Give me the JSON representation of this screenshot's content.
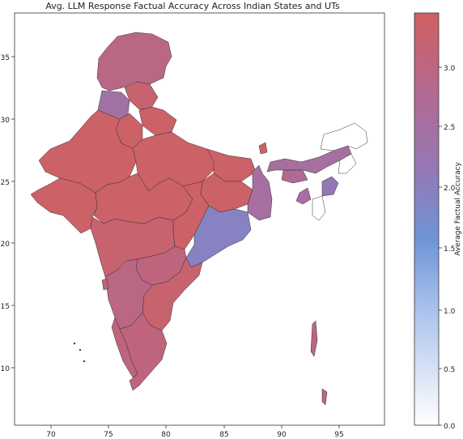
{
  "title": "Avg. LLM Response Factual Accuracy Across Indian States and UTs",
  "colorbar": {
    "label": "Average Factual Accuracy",
    "ticks": [
      "0.0",
      "0.5",
      "1.0",
      "1.5",
      "2.0",
      "2.5",
      "3.0"
    ],
    "min": 0.0,
    "max": 3.4,
    "colors": {
      "low": "#ffffff",
      "mid_low": "#6f95d6",
      "mid": "#9478b5",
      "high": "#d05f60"
    }
  },
  "axes": {
    "x_ticks": [
      "70",
      "75",
      "80",
      "85",
      "90",
      "95"
    ],
    "y_ticks": [
      "35",
      "30",
      "25",
      "20",
      "15",
      "10"
    ],
    "x_range": [
      67.5,
      98.5
    ],
    "y_range": [
      6.0,
      38.5
    ]
  },
  "chart_data": {
    "type": "choropleth",
    "title": "Avg. LLM Response Factual Accuracy Across Indian States and UTs",
    "colorbar_label": "Average Factual Accuracy",
    "value_range": [
      0.0,
      3.4
    ],
    "regions": [
      {
        "name": "Jammu and Kashmir",
        "value": 2.9
      },
      {
        "name": "Himachal Pradesh",
        "value": 3.2
      },
      {
        "name": "Punjab",
        "value": 2.4
      },
      {
        "name": "Uttarakhand",
        "value": 3.3
      },
      {
        "name": "Haryana",
        "value": 3.3
      },
      {
        "name": "Rajasthan",
        "value": 3.3
      },
      {
        "name": "Uttar Pradesh",
        "value": 3.3
      },
      {
        "name": "Bihar",
        "value": 3.3
      },
      {
        "name": "Gujarat",
        "value": 3.3
      },
      {
        "name": "Madhya Pradesh",
        "value": 3.3
      },
      {
        "name": "Jharkhand",
        "value": 3.3
      },
      {
        "name": "West Bengal",
        "value": 2.5
      },
      {
        "name": "Chhattisgarh",
        "value": 3.3
      },
      {
        "name": "Odisha",
        "value": 1.9
      },
      {
        "name": "Maharashtra",
        "value": 3.2
      },
      {
        "name": "Telangana",
        "value": 3.0
      },
      {
        "name": "Andhra Pradesh",
        "value": 3.2
      },
      {
        "name": "Karnataka",
        "value": 2.9
      },
      {
        "name": "Goa",
        "value": 3.0
      },
      {
        "name": "Kerala",
        "value": 3.0
      },
      {
        "name": "Tamil Nadu",
        "value": 3.0
      },
      {
        "name": "Sikkim",
        "value": 3.3
      },
      {
        "name": "Assam",
        "value": 2.5
      },
      {
        "name": "Meghalaya",
        "value": 2.7
      },
      {
        "name": "Manipur",
        "value": 2.1
      },
      {
        "name": "Tripura",
        "value": 2.5
      },
      {
        "name": "Andaman and Nicobar Islands",
        "value": 2.9
      }
    ]
  }
}
